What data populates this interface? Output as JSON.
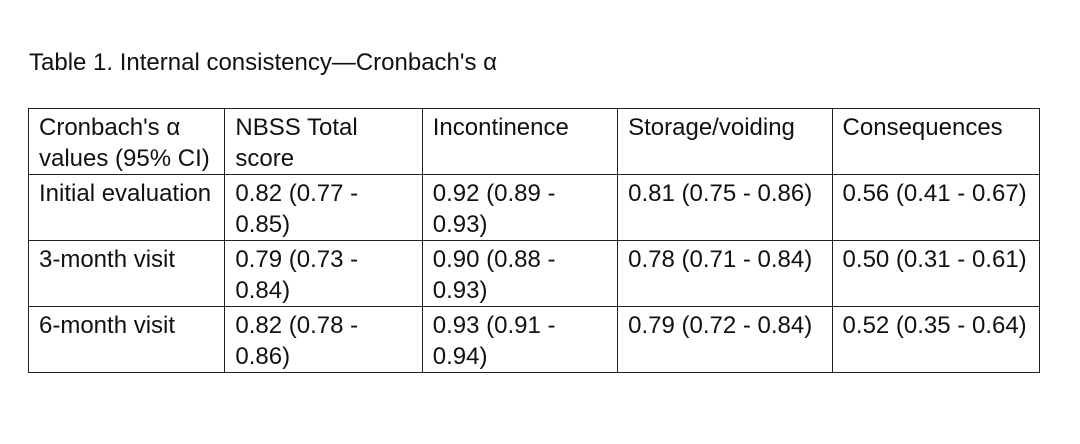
{
  "caption": "Table 1. Internal consistency—Cronbach's α",
  "table": {
    "headers": [
      "Cronbach's α values (95% CI)",
      "NBSS Total score",
      "Incontinence",
      "Storage/voiding",
      "Consequences"
    ],
    "rows": [
      [
        "Initial evaluation",
        "0.82 (0.77 - 0.85)",
        "0.92 (0.89 - 0.93)",
        "0.81 (0.75 - 0.86)",
        "0.56 (0.41 - 0.67)"
      ],
      [
        "3-month visit",
        "0.79 (0.73 - 0.84)",
        "0.90 (0.88 - 0.93)",
        "0.78 (0.71 - 0.84)",
        "0.50 (0.31 - 0.61)"
      ],
      [
        "6-month visit",
        "0.82 (0.78 - 0.86)",
        "0.93 (0.91 - 0.94)",
        "0.79 (0.72 - 0.84)",
        "0.52 (0.35 - 0.64)"
      ]
    ]
  }
}
